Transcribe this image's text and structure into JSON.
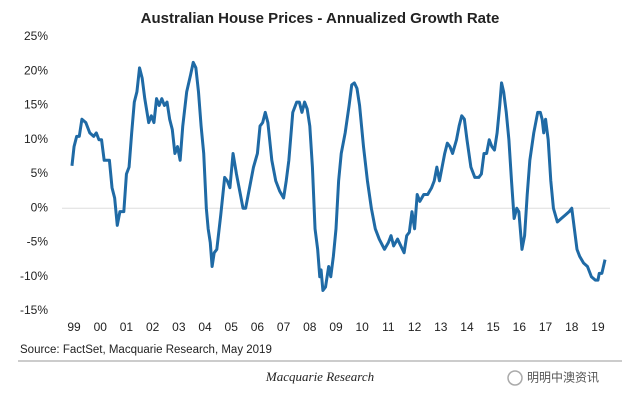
{
  "chart_data": {
    "type": "line",
    "title": "Australian House Prices - Annualized Growth Rate",
    "source": "Source: FactSet, Macquarie Research, May 2019",
    "xlim": [
      1998.54,
      2019.46
    ],
    "xticks": [
      {
        "value": 1999,
        "label": "99"
      },
      {
        "value": 2000,
        "label": "00"
      },
      {
        "value": 2001,
        "label": "01"
      },
      {
        "value": 2002,
        "label": "02"
      },
      {
        "value": 2003,
        "label": "03"
      },
      {
        "value": 2004,
        "label": "04"
      },
      {
        "value": 2005,
        "label": "05"
      },
      {
        "value": 2006,
        "label": "06"
      },
      {
        "value": 2007,
        "label": "07"
      },
      {
        "value": 2008,
        "label": "08"
      },
      {
        "value": 2009,
        "label": "09"
      },
      {
        "value": 2010,
        "label": "10"
      },
      {
        "value": 2011,
        "label": "11"
      },
      {
        "value": 2012,
        "label": "12"
      },
      {
        "value": 2013,
        "label": "13"
      },
      {
        "value": 2014,
        "label": "14"
      },
      {
        "value": 2015,
        "label": "15"
      },
      {
        "value": 2016,
        "label": "16"
      },
      {
        "value": 2017,
        "label": "17"
      },
      {
        "value": 2018,
        "label": "18"
      },
      {
        "value": 2019,
        "label": "19"
      }
    ],
    "ylim": [
      -15,
      25
    ],
    "yticks": [
      {
        "value": 25,
        "label": "25%"
      },
      {
        "value": 20,
        "label": "20%"
      },
      {
        "value": 15,
        "label": "15%"
      },
      {
        "value": 10,
        "label": "10%"
      },
      {
        "value": 5,
        "label": "5%"
      },
      {
        "value": 0,
        "label": "0%"
      },
      {
        "value": -5,
        "label": "-5%"
      },
      {
        "value": -10,
        "label": "-10%"
      },
      {
        "value": -15,
        "label": "-15%"
      }
    ],
    "grid": false,
    "series": [
      {
        "color": "#1f6aa5",
        "x": [
          1998.92,
          1999.0,
          1999.1,
          1999.2,
          1999.3,
          1999.45,
          1999.6,
          1999.75,
          1999.85,
          1999.95,
          2000.05,
          2000.15,
          2000.35,
          2000.45,
          2000.55,
          2000.65,
          2000.75,
          2000.9,
          2001.0,
          2001.1,
          2001.2,
          2001.3,
          2001.4,
          2001.5,
          2001.6,
          2001.7,
          2001.85,
          2001.95,
          2002.05,
          2002.15,
          2002.25,
          2002.35,
          2002.45,
          2002.55,
          2002.65,
          2002.75,
          2002.85,
          2002.95,
          2003.05,
          2003.15,
          2003.3,
          2003.45,
          2003.55,
          2003.65,
          2003.75,
          2003.85,
          2003.95,
          2004.05,
          2004.12,
          2004.2,
          2004.27,
          2004.35,
          2004.45,
          2004.6,
          2004.75,
          2004.85,
          2004.95,
          2005.07,
          2005.2,
          2005.3,
          2005.45,
          2005.55,
          2005.7,
          2005.85,
          2006.0,
          2006.1,
          2006.2,
          2006.3,
          2006.4,
          2006.55,
          2006.7,
          2006.85,
          2007.0,
          2007.1,
          2007.2,
          2007.35,
          2007.5,
          2007.6,
          2007.7,
          2007.8,
          2007.9,
          2008.0,
          2008.1,
          2008.2,
          2008.3,
          2008.38,
          2008.43,
          2008.5,
          2008.6,
          2008.72,
          2008.8,
          2008.9,
          2009.0,
          2009.1,
          2009.2,
          2009.35,
          2009.5,
          2009.6,
          2009.7,
          2009.8,
          2009.9,
          2010.05,
          2010.2,
          2010.35,
          2010.5,
          2010.65,
          2010.85,
          2011.0,
          2011.1,
          2011.2,
          2011.35,
          2011.6,
          2011.7,
          2011.8,
          2011.9,
          2012.0,
          2012.1,
          2012.2,
          2012.35,
          2012.5,
          2012.65,
          2012.75,
          2012.85,
          2012.95,
          2013.05,
          2013.15,
          2013.25,
          2013.35,
          2013.45,
          2013.6,
          2013.7,
          2013.8,
          2013.9,
          2014.0,
          2014.15,
          2014.3,
          2014.45,
          2014.55,
          2014.65,
          2014.75,
          2014.85,
          2014.95,
          2015.05,
          2015.15,
          2015.25,
          2015.32,
          2015.4,
          2015.5,
          2015.6,
          2015.7,
          2015.8,
          2015.9,
          2015.98,
          2016.1,
          2016.2,
          2016.3,
          2016.4,
          2016.55,
          2016.7,
          2016.8,
          2016.87,
          2016.93,
          2017.0,
          2017.1,
          2017.2,
          2017.3,
          2017.45,
          2017.6,
          2017.75,
          2017.9,
          2018.0,
          2018.1,
          2018.2,
          2018.3,
          2018.45,
          2018.6,
          2018.75,
          2018.9,
          2019.0,
          2019.05,
          2019.15,
          2019.27
        ],
        "values": [
          6.2,
          9,
          10.5,
          10.5,
          13,
          12.5,
          11,
          10.5,
          11,
          10,
          10,
          7,
          7,
          3,
          1.5,
          -2.5,
          -0.5,
          -0.5,
          5,
          6,
          11,
          15.5,
          17,
          20.5,
          19,
          16,
          12.5,
          13.5,
          12.5,
          16,
          15,
          16,
          15,
          15.5,
          13,
          11.5,
          8,
          9,
          7,
          12,
          17,
          19.5,
          21.3,
          20.5,
          17,
          12,
          8,
          0,
          -3,
          -5,
          -8.5,
          -6.5,
          -6,
          -1,
          4.5,
          4,
          3,
          8,
          5,
          3,
          0,
          0,
          3,
          6,
          8,
          12,
          12.5,
          14,
          12.5,
          7,
          4,
          2.5,
          1.5,
          4,
          7,
          14,
          15.5,
          15.5,
          14,
          15.5,
          14.5,
          12,
          6,
          -3,
          -6,
          -10,
          -9,
          -12,
          -11.5,
          -8.5,
          -10,
          -7,
          -3,
          4,
          8,
          11,
          15,
          18,
          18.3,
          17.5,
          15,
          9,
          4,
          0,
          -3,
          -4.5,
          -6,
          -5,
          -4,
          -5.5,
          -4.5,
          -6.5,
          -4,
          -3.5,
          -0.5,
          -3,
          2,
          1,
          2,
          2,
          3,
          4,
          6,
          4,
          6,
          8,
          9.5,
          9,
          8,
          10,
          12,
          13.5,
          13,
          10,
          6,
          4.5,
          4.5,
          5,
          8,
          8,
          10,
          9,
          8.5,
          11,
          15,
          18.3,
          17,
          14,
          10,
          4,
          -1.5,
          0,
          -0.5,
          -6,
          -4,
          2,
          7,
          11,
          14,
          14,
          13,
          11,
          13,
          10,
          4,
          0,
          -2,
          -1.5,
          -1,
          -0.5,
          0,
          -3,
          -6,
          -7,
          -8,
          -8.5,
          -10,
          -10.5,
          -10.5,
          -9.5,
          -9.5,
          -7.5
        ]
      }
    ]
  },
  "footer": {
    "publisher": "Macquarie Research",
    "watermark": "明明中澳资讯"
  }
}
